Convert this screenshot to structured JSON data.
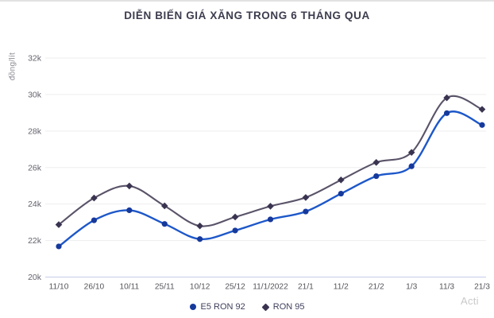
{
  "page": {
    "title": "DIỄN BIẾN GIÁ XĂNG TRONG 6 THÁNG QUA",
    "watermark": "Acti"
  },
  "chart_data": {
    "type": "line",
    "title": "DIỄN BIẾN GIÁ XĂNG TRONG 6 THÁNG QUA",
    "xlabel": "",
    "ylabel": "đồng/lít",
    "categories": [
      "11/10",
      "26/10",
      "10/11",
      "25/11",
      "10/12",
      "25/12",
      "11/1/2022",
      "21/1",
      "11/2",
      "21/2",
      "1/3",
      "11/3",
      "21/3"
    ],
    "series": [
      {
        "name": "E5 RON 92",
        "marker": "circle",
        "line_color": "#1d57c9",
        "marker_color": "#16399c",
        "values": [
          21680,
          23110,
          23660,
          22910,
          22080,
          22550,
          23160,
          23590,
          24570,
          25530,
          26070,
          28980,
          28330
        ]
      },
      {
        "name": "RON 95",
        "marker": "diamond",
        "line_color": "#5a5368",
        "marker_color": "#3a3451",
        "values": [
          22870,
          24330,
          24990,
          23900,
          22800,
          23290,
          23880,
          24360,
          25320,
          26280,
          26830,
          29820,
          29190
        ]
      }
    ],
    "ylim": [
      20000,
      32000
    ],
    "ytick_step": 2000,
    "ytick_label_suffix": "k",
    "grid": true,
    "legend_position": "bottom",
    "colors": {
      "grid_line": "#ededed",
      "baseline": "#c5cbe8",
      "tick_text": "#63636e",
      "xtick_text": "#55555c"
    }
  }
}
